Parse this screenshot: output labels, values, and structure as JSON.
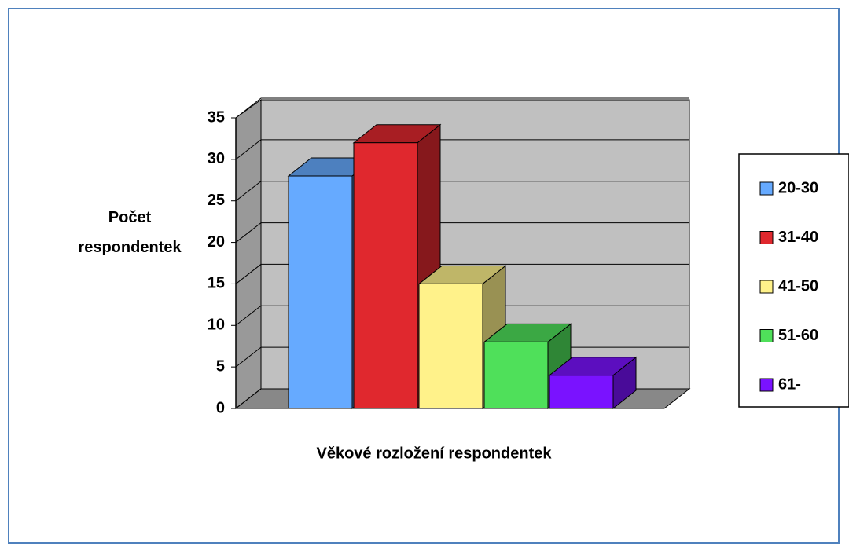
{
  "chart_data": {
    "type": "bar3d",
    "y_label": "Počet respondentek",
    "x_label": "Věkové rozložení respondentek",
    "series": [
      {
        "name": "20-30",
        "color": "#66aaff",
        "values": [
          28
        ]
      },
      {
        "name": "31-40",
        "color": "#e0282e",
        "values": [
          32
        ]
      },
      {
        "name": "41-50",
        "color": "#fff28a",
        "values": [
          15
        ]
      },
      {
        "name": "51-60",
        "color": "#4fe05a",
        "values": [
          8
        ]
      },
      {
        "name": "61-",
        "color": "#7a12ff",
        "values": [
          4
        ]
      }
    ],
    "ylim": [
      0,
      35
    ],
    "yticks": [
      0,
      5,
      10,
      15,
      20,
      25,
      30,
      35
    ],
    "grid": true,
    "legend": "right"
  }
}
